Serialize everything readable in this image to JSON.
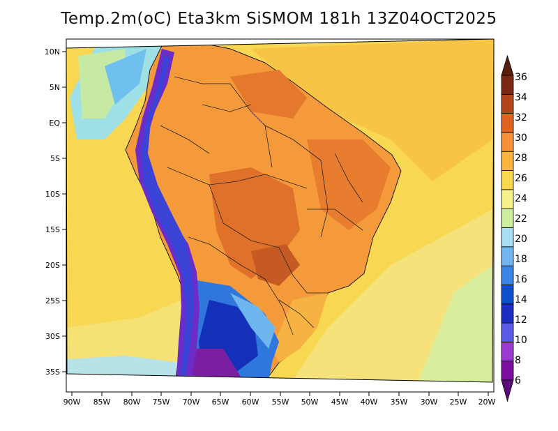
{
  "title": "Temp.2m(oC) Eta3km SiSMOM 181h 13Z04OCT2025",
  "map": {
    "latitude_labels": [
      "10N",
      "5N",
      "EQ",
      "5S",
      "10S",
      "15S",
      "20S",
      "25S",
      "30S",
      "35S"
    ],
    "longitude_labels": [
      "90W",
      "85W",
      "80W",
      "75W",
      "70W",
      "65W",
      "60W",
      "55W",
      "50W",
      "45W",
      "40W",
      "35W",
      "30W",
      "25W",
      "20W"
    ],
    "longitude_range": [
      -90,
      -20
    ],
    "latitude_range": [
      -38,
      11
    ]
  },
  "colorbar": {
    "labels": [
      "6",
      "8",
      "10",
      "12",
      "14",
      "16",
      "18",
      "20",
      "22",
      "24",
      "26",
      "28",
      "30",
      "32",
      "34",
      "36"
    ],
    "colors": [
      "#7b0f9e",
      "#9b3ad0",
      "#5a5ae6",
      "#1c2cbf",
      "#0f4fcf",
      "#3a86e6",
      "#73b7f0",
      "#a7def5",
      "#cdeea0",
      "#f8f08a",
      "#f9d84e",
      "#f9b43e",
      "#f6913a",
      "#df6424",
      "#b4451a",
      "#7a2a12"
    ]
  }
}
